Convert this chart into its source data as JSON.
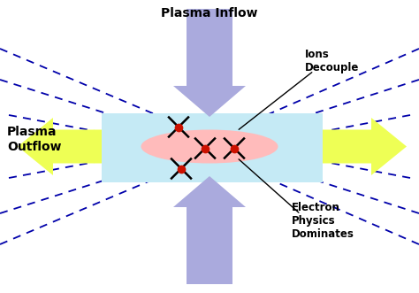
{
  "bg_color": "#ffffff",
  "arrow_purple": "#aaaadd",
  "arrow_yellow": "#eeff55",
  "yellow_rect_color": "#eeff88",
  "blue_rect": "#c5eaf5",
  "pink_ellipse": "#ffbbbb",
  "line_color": "#0000aa",
  "spacecraft_line": "#000000",
  "spacecraft_dot": "#cc1100",
  "text_plasma_inflow": "Plasma Inflow",
  "text_ions_decouple": "Ions\nDecouple",
  "text_plasma_outflow": "Plasma\nOutflow",
  "text_electron": "Electron\nPhysics\nDominates",
  "figw": 4.74,
  "figh": 3.31,
  "dpi": 100
}
